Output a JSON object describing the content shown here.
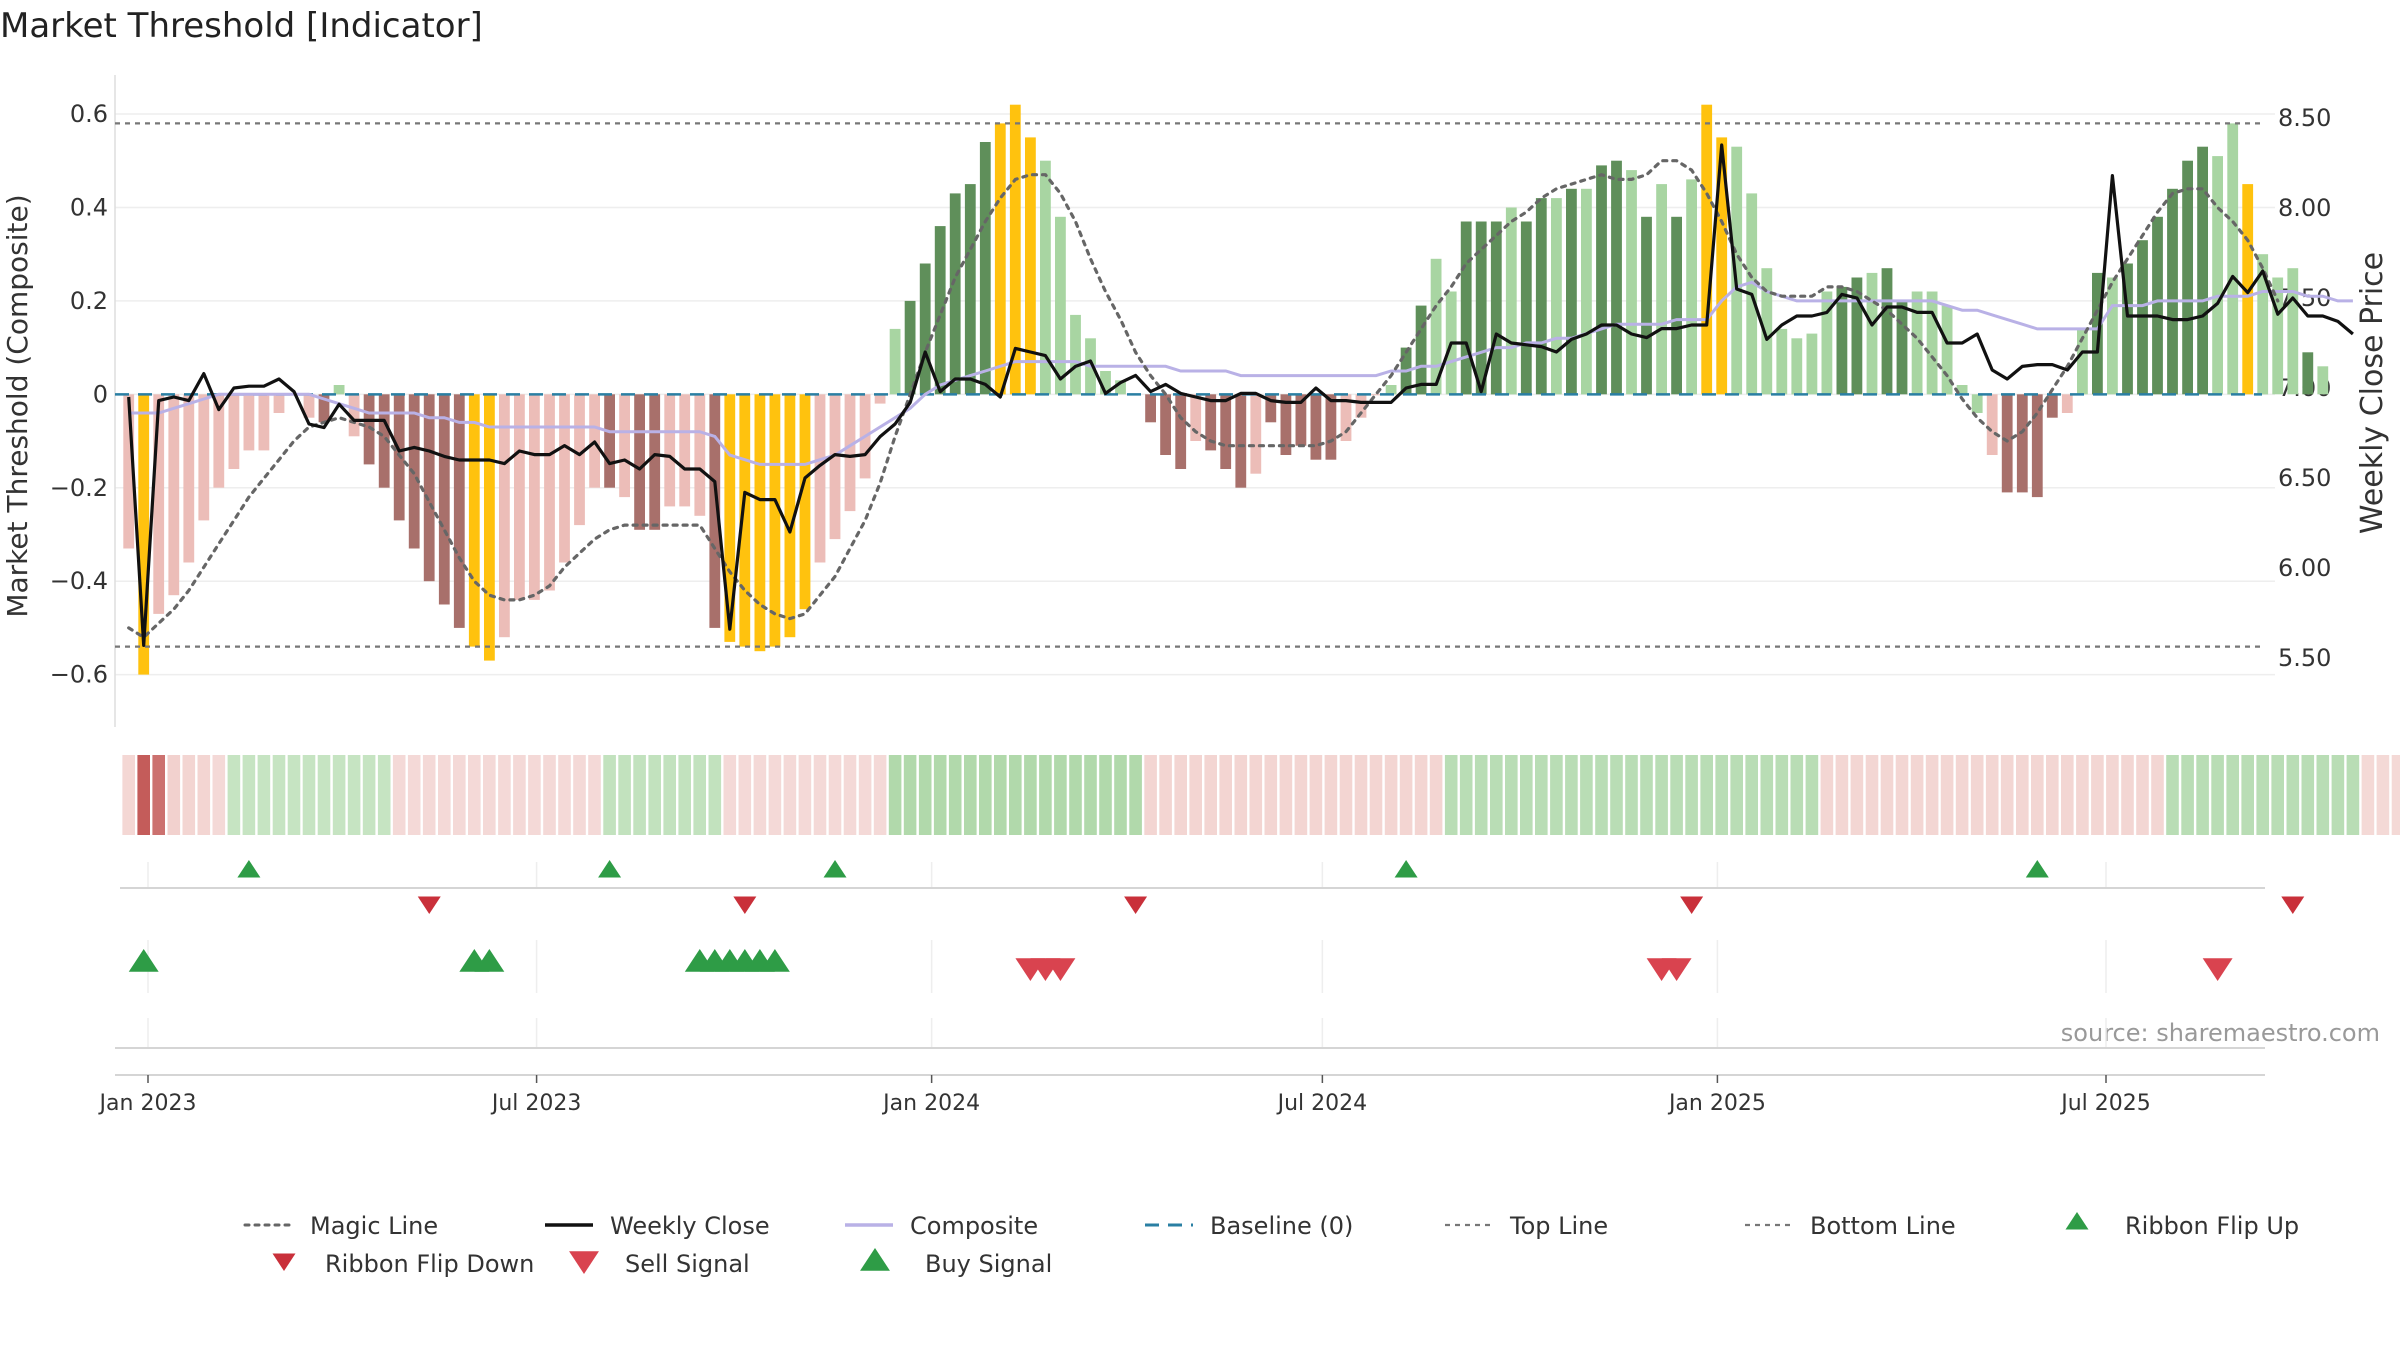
{
  "title": "Market Threshold [Indicator]",
  "source": "source: sharemaestro.com",
  "colors": {
    "strong_green": "#5f8f5a",
    "light_green": "#a8d5a2",
    "strong_red": "#a8706b",
    "light_red": "#ecbdb8",
    "extreme": "#ffc20e",
    "close": "#111111",
    "composite": "#b9b1e6",
    "magic": "#666666",
    "baseline": "#2a7fa3",
    "thresholds": "#777777",
    "buy": "#2e9c46",
    "sell": "#d9434f",
    "flip_up": "#2e9c46",
    "flip_down": "#c9303a"
  },
  "chart_data": {
    "type": "bar",
    "x_axis": {
      "ticks": [
        "Jan 2023",
        "Jul 2023",
        "Jan 2024",
        "Jul 2024",
        "Jan 2025",
        "Jul 2025"
      ]
    },
    "y_left": {
      "label": "Market Threshold (Composite)",
      "range": [
        -0.68,
        0.63
      ],
      "ticks": [
        -0.6,
        -0.4,
        -0.2,
        0,
        0.2,
        0.4,
        0.6
      ],
      "tick_labels": [
        "−0.6",
        "−0.4",
        "−0.2",
        "0",
        "0.2",
        "0.4",
        "0.6"
      ]
    },
    "y_right": {
      "label": "Weekly Close Price",
      "range": [
        5.2,
        8.6
      ],
      "ticks": [
        5.5,
        6.0,
        6.5,
        7.0,
        7.5,
        8.0,
        8.5
      ],
      "tick_labels": [
        "5.50",
        "6.00",
        "6.50",
        "7.00",
        "7.50",
        "8.00",
        "8.50"
      ]
    },
    "top_line": 0.58,
    "bottom_line": -0.54,
    "baseline": 0,
    "grid": true,
    "start_date": "2022-12-23",
    "week_values": [
      -0.33,
      -0.6,
      -0.47,
      -0.43,
      -0.36,
      -0.27,
      -0.2,
      -0.16,
      -0.12,
      -0.12,
      -0.04,
      0.0,
      -0.05,
      -0.06,
      0.02,
      -0.09,
      -0.15,
      -0.2,
      -0.27,
      -0.33,
      -0.4,
      -0.45,
      -0.5,
      -0.54,
      -0.57,
      -0.52,
      -0.44,
      -0.44,
      -0.42,
      -0.36,
      -0.28,
      -0.2,
      -0.2,
      -0.22,
      -0.29,
      -0.29,
      -0.24,
      -0.24,
      -0.26,
      -0.5,
      -0.53,
      -0.54,
      -0.55,
      -0.54,
      -0.52,
      -0.46,
      -0.36,
      -0.31,
      -0.25,
      -0.18,
      -0.02,
      0.14,
      0.2,
      0.28,
      0.36,
      0.43,
      0.45,
      0.54,
      0.58,
      0.62,
      0.55,
      0.5,
      0.38,
      0.17,
      0.12,
      0.05,
      0.03,
      0.0,
      -0.06,
      -0.13,
      -0.16,
      -0.1,
      -0.12,
      -0.16,
      -0.2,
      -0.17,
      -0.06,
      -0.13,
      -0.11,
      -0.14,
      -0.14,
      -0.1,
      -0.05,
      0.0,
      0.02,
      0.1,
      0.19,
      0.29,
      0.22,
      0.37,
      0.37,
      0.37,
      0.4,
      0.37,
      0.42,
      0.42,
      0.44,
      0.44,
      0.49,
      0.5,
      0.48,
      0.38,
      0.45,
      0.38,
      0.46,
      0.62,
      0.55,
      0.53,
      0.43,
      0.27,
      0.14,
      0.12,
      0.13,
      0.22,
      0.23,
      0.25,
      0.26,
      0.27,
      0.2,
      0.22,
      0.22,
      0.19,
      0.02,
      -0.04,
      -0.13,
      -0.21,
      -0.21,
      -0.22,
      -0.05,
      -0.04,
      0.14,
      0.26,
      0.25,
      0.28,
      0.33,
      0.38,
      0.44,
      0.5,
      0.53,
      0.51,
      0.58,
      0.45,
      0.3,
      0.25,
      0.27,
      0.09,
      0.06
    ],
    "week_colors": [
      "LR",
      "E",
      "LR",
      "LR",
      "LR",
      "LR",
      "LR",
      "LR",
      "LR",
      "LR",
      "LR",
      "LG",
      "LR",
      "SR",
      "LG",
      "LR",
      "SR",
      "SR",
      "SR",
      "SR",
      "SR",
      "SR",
      "SR",
      "E",
      "E",
      "LR",
      "LR",
      "LR",
      "LR",
      "LR",
      "LR",
      "LR",
      "SR",
      "LR",
      "SR",
      "SR",
      "LR",
      "LR",
      "LR",
      "SR",
      "E",
      "E",
      "E",
      "E",
      "E",
      "E",
      "LR",
      "LR",
      "LR",
      "LR",
      "LR",
      "LG",
      "SG",
      "SG",
      "SG",
      "SG",
      "SG",
      "SG",
      "E",
      "E",
      "E",
      "LG",
      "LG",
      "LG",
      "LG",
      "LG",
      "LG",
      "LG",
      "SR",
      "SR",
      "SR",
      "LR",
      "SR",
      "SR",
      "SR",
      "LR",
      "SR",
      "SR",
      "SR",
      "SR",
      "SR",
      "LR",
      "LR",
      "LR",
      "LG",
      "SG",
      "SG",
      "LG",
      "LG",
      "SG",
      "SG",
      "SG",
      "LG",
      "SG",
      "SG",
      "LG",
      "SG",
      "LG",
      "SG",
      "SG",
      "LG",
      "SG",
      "LG",
      "SG",
      "LG",
      "E",
      "E",
      "LG",
      "LG",
      "LG",
      "LG",
      "LG",
      "LG",
      "LG",
      "SG",
      "SG",
      "LG",
      "SG",
      "SG",
      "LG",
      "LG",
      "LG",
      "LG",
      "LG",
      "LR",
      "SR",
      "SR",
      "SR",
      "SR",
      "LR",
      "LG",
      "SG",
      "LG",
      "SG",
      "SG",
      "SG",
      "SG",
      "SG",
      "SG",
      "LG",
      "LG",
      "E",
      "LG",
      "LG",
      "LG",
      "SG",
      "LG",
      "LG"
    ],
    "close_weekly": [
      6.95,
      5.57,
      6.93,
      6.95,
      6.93,
      7.08,
      6.88,
      7.0,
      7.01,
      7.01,
      7.05,
      6.98,
      6.8,
      6.78,
      6.91,
      6.82,
      6.82,
      6.82,
      6.65,
      6.67,
      6.65,
      6.62,
      6.6,
      6.6,
      6.6,
      6.58,
      6.65,
      6.63,
      6.63,
      6.68,
      6.63,
      6.7,
      6.58,
      6.6,
      6.55,
      6.63,
      6.62,
      6.55,
      6.55,
      6.48,
      5.66,
      6.42,
      6.38,
      6.38,
      6.2,
      6.5,
      6.57,
      6.63,
      6.62,
      6.63,
      6.73,
      6.8,
      6.92,
      7.2,
      6.98,
      7.05,
      7.05,
      7.02,
      6.95,
      7.22,
      7.2,
      7.18,
      7.05,
      7.12,
      7.15,
      6.97,
      7.03,
      7.07,
      6.98,
      7.02,
      6.97,
      6.95,
      6.93,
      6.93,
      6.97,
      6.97,
      6.93,
      6.92,
      6.92,
      7.0,
      6.93,
      6.93,
      6.92,
      6.92,
      6.92,
      7.0,
      7.02,
      7.02,
      7.25,
      7.25,
      6.98,
      7.3,
      7.25,
      7.24,
      7.23,
      7.2,
      7.27,
      7.3,
      7.35,
      7.35,
      7.3,
      7.28,
      7.33,
      7.33,
      7.35,
      7.35,
      8.35,
      7.55,
      7.52,
      7.27,
      7.35,
      7.4,
      7.4,
      7.42,
      7.52,
      7.5,
      7.35,
      7.45,
      7.45,
      7.42,
      7.42,
      7.25,
      7.25,
      7.3,
      7.1,
      7.05,
      7.12,
      7.13,
      7.13,
      7.1,
      7.2,
      7.2,
      8.18,
      7.4,
      7.4,
      7.4,
      7.38,
      7.38,
      7.4,
      7.47,
      7.62,
      7.53,
      7.65,
      7.41,
      7.5,
      7.4,
      7.4,
      7.37,
      7.3
    ],
    "composite_weekly": [
      -0.04,
      -0.04,
      -0.04,
      -0.03,
      -0.02,
      -0.01,
      -0.0,
      0.0,
      0.0,
      0.0,
      0.0,
      0.0,
      0.0,
      -0.01,
      -0.02,
      -0.03,
      -0.04,
      -0.04,
      -0.04,
      -0.04,
      -0.05,
      -0.05,
      -0.06,
      -0.06,
      -0.07,
      -0.07,
      -0.07,
      -0.07,
      -0.07,
      -0.07,
      -0.07,
      -0.07,
      -0.08,
      -0.08,
      -0.08,
      -0.08,
      -0.08,
      -0.08,
      -0.08,
      -0.09,
      -0.13,
      -0.14,
      -0.15,
      -0.15,
      -0.15,
      -0.15,
      -0.14,
      -0.13,
      -0.11,
      -0.09,
      -0.07,
      -0.05,
      -0.03,
      -0.0,
      0.02,
      0.03,
      0.04,
      0.05,
      0.06,
      0.07,
      0.07,
      0.07,
      0.07,
      0.07,
      0.06,
      0.06,
      0.06,
      0.06,
      0.06,
      0.06,
      0.05,
      0.05,
      0.05,
      0.05,
      0.04,
      0.04,
      0.04,
      0.04,
      0.04,
      0.04,
      0.04,
      0.04,
      0.04,
      0.04,
      0.05,
      0.05,
      0.06,
      0.06,
      0.07,
      0.08,
      0.09,
      0.1,
      0.1,
      0.11,
      0.11,
      0.12,
      0.12,
      0.13,
      0.14,
      0.15,
      0.15,
      0.15,
      0.15,
      0.16,
      0.16,
      0.16,
      0.2,
      0.23,
      0.24,
      0.22,
      0.21,
      0.2,
      0.2,
      0.2,
      0.2,
      0.2,
      0.2,
      0.2,
      0.2,
      0.2,
      0.2,
      0.19,
      0.18,
      0.18,
      0.17,
      0.16,
      0.15,
      0.14,
      0.14,
      0.14,
      0.14,
      0.14,
      0.19,
      0.19,
      0.19,
      0.2,
      0.2,
      0.2,
      0.2,
      0.21,
      0.21,
      0.21,
      0.22,
      0.22,
      0.22,
      0.21,
      0.21,
      0.2,
      0.2
    ],
    "magic_weekly": [
      -0.5,
      -0.52,
      -0.49,
      -0.46,
      -0.42,
      -0.37,
      -0.32,
      -0.27,
      -0.22,
      -0.18,
      -0.14,
      -0.1,
      -0.07,
      -0.06,
      -0.05,
      -0.06,
      -0.07,
      -0.09,
      -0.13,
      -0.17,
      -0.23,
      -0.29,
      -0.35,
      -0.4,
      -0.43,
      -0.44,
      -0.44,
      -0.43,
      -0.41,
      -0.37,
      -0.34,
      -0.31,
      -0.29,
      -0.28,
      -0.28,
      -0.28,
      -0.28,
      -0.28,
      -0.28,
      -0.33,
      -0.38,
      -0.42,
      -0.45,
      -0.47,
      -0.48,
      -0.47,
      -0.43,
      -0.39,
      -0.33,
      -0.27,
      -0.19,
      -0.09,
      0.0,
      0.09,
      0.17,
      0.25,
      0.31,
      0.37,
      0.42,
      0.46,
      0.47,
      0.47,
      0.43,
      0.37,
      0.29,
      0.22,
      0.16,
      0.09,
      0.04,
      -0.0,
      -0.05,
      -0.08,
      -0.1,
      -0.11,
      -0.11,
      -0.11,
      -0.11,
      -0.11,
      -0.11,
      -0.11,
      -0.1,
      -0.08,
      -0.04,
      -0.0,
      0.04,
      0.09,
      0.14,
      0.19,
      0.23,
      0.28,
      0.31,
      0.34,
      0.37,
      0.39,
      0.42,
      0.44,
      0.45,
      0.46,
      0.47,
      0.46,
      0.46,
      0.47,
      0.5,
      0.5,
      0.48,
      0.43,
      0.37,
      0.3,
      0.25,
      0.22,
      0.21,
      0.21,
      0.21,
      0.23,
      0.23,
      0.22,
      0.2,
      0.18,
      0.15,
      0.12,
      0.08,
      0.04,
      -0.01,
      -0.05,
      -0.08,
      -0.1,
      -0.08,
      -0.04,
      0.01,
      0.06,
      0.12,
      0.18,
      0.24,
      0.29,
      0.34,
      0.39,
      0.43,
      0.44,
      0.44,
      0.4,
      0.37,
      0.33,
      0.27,
      0.2
    ],
    "ribbon_weekly": [
      -0.25,
      -0.8,
      -0.6,
      -0.4,
      -0.3,
      -0.3,
      -0.2,
      0.2,
      0.2,
      0.2,
      0.2,
      0.2,
      0.2,
      0.2,
      0.2,
      0.2,
      0.2,
      0.2,
      -0.2,
      -0.2,
      -0.2,
      -0.2,
      -0.2,
      -0.2,
      -0.2,
      -0.2,
      -0.2,
      -0.2,
      -0.2,
      -0.2,
      -0.2,
      -0.2,
      0.25,
      0.25,
      0.25,
      0.25,
      0.25,
      0.25,
      0.25,
      0.25,
      -0.2,
      -0.2,
      -0.2,
      -0.2,
      -0.2,
      -0.2,
      -0.2,
      -0.2,
      -0.2,
      -0.2,
      -0.2,
      0.45,
      0.45,
      0.45,
      0.45,
      0.45,
      0.45,
      0.45,
      0.45,
      0.45,
      0.45,
      0.45,
      0.45,
      0.45,
      0.45,
      0.45,
      0.45,
      0.45,
      -0.3,
      -0.3,
      -0.3,
      -0.3,
      -0.3,
      -0.3,
      -0.3,
      -0.3,
      -0.3,
      -0.3,
      -0.3,
      -0.3,
      -0.3,
      -0.3,
      -0.3,
      -0.3,
      -0.3,
      -0.3,
      -0.3,
      -0.3,
      0.35,
      0.35,
      0.35,
      0.35,
      0.35,
      0.35,
      0.35,
      0.35,
      0.35,
      0.35,
      0.35,
      0.35,
      0.35,
      0.35,
      0.35,
      0.35,
      0.35,
      0.35,
      0.35,
      0.35,
      0.35,
      0.35,
      0.35,
      0.35,
      0.35,
      -0.28,
      -0.28,
      -0.28,
      -0.28,
      -0.28,
      -0.28,
      -0.28,
      -0.28,
      -0.28,
      -0.28,
      -0.28,
      -0.28,
      -0.28,
      -0.28,
      -0.28,
      -0.28,
      -0.28,
      -0.28,
      -0.28,
      -0.28,
      -0.28,
      -0.28,
      -0.28,
      0.35,
      0.35,
      0.35,
      0.35,
      0.35,
      0.35,
      0.35,
      0.35,
      0.35,
      0.35,
      0.35,
      0.35,
      0.35,
      -0.22,
      -0.22,
      -0.22
    ],
    "ribbon_flip_up_dates": [
      "2023-02-17",
      "2023-08-04",
      "2023-11-17",
      "2024-08-09",
      "2025-05-30"
    ],
    "ribbon_flip_down_dates": [
      "2023-05-12",
      "2023-10-06",
      "2024-04-05",
      "2024-12-20",
      "2025-09-26"
    ],
    "buy_signal_dates": [
      "2022-12-30",
      "2023-06-02",
      "2023-06-09",
      "2023-09-15",
      "2023-09-22",
      "2023-09-29",
      "2023-10-06",
      "2023-10-13",
      "2023-10-20"
    ],
    "sell_signal_dates": [
      "2024-02-16",
      "2024-02-23",
      "2024-03-01",
      "2024-12-06",
      "2024-12-13",
      "2025-08-22"
    ]
  },
  "legend": [
    {
      "key": "magic",
      "label": "Magic Line"
    },
    {
      "key": "close",
      "label": "Weekly Close"
    },
    {
      "key": "composite",
      "label": "Composite"
    },
    {
      "key": "baseline",
      "label": "Baseline (0)"
    },
    {
      "key": "top",
      "label": "Top Line"
    },
    {
      "key": "bottom",
      "label": "Bottom Line"
    },
    {
      "key": "flip_up",
      "label": "Ribbon Flip Up"
    },
    {
      "key": "flip_down",
      "label": "Ribbon Flip Down"
    },
    {
      "key": "sell",
      "label": "Sell Signal"
    },
    {
      "key": "buy",
      "label": "Buy Signal"
    }
  ]
}
